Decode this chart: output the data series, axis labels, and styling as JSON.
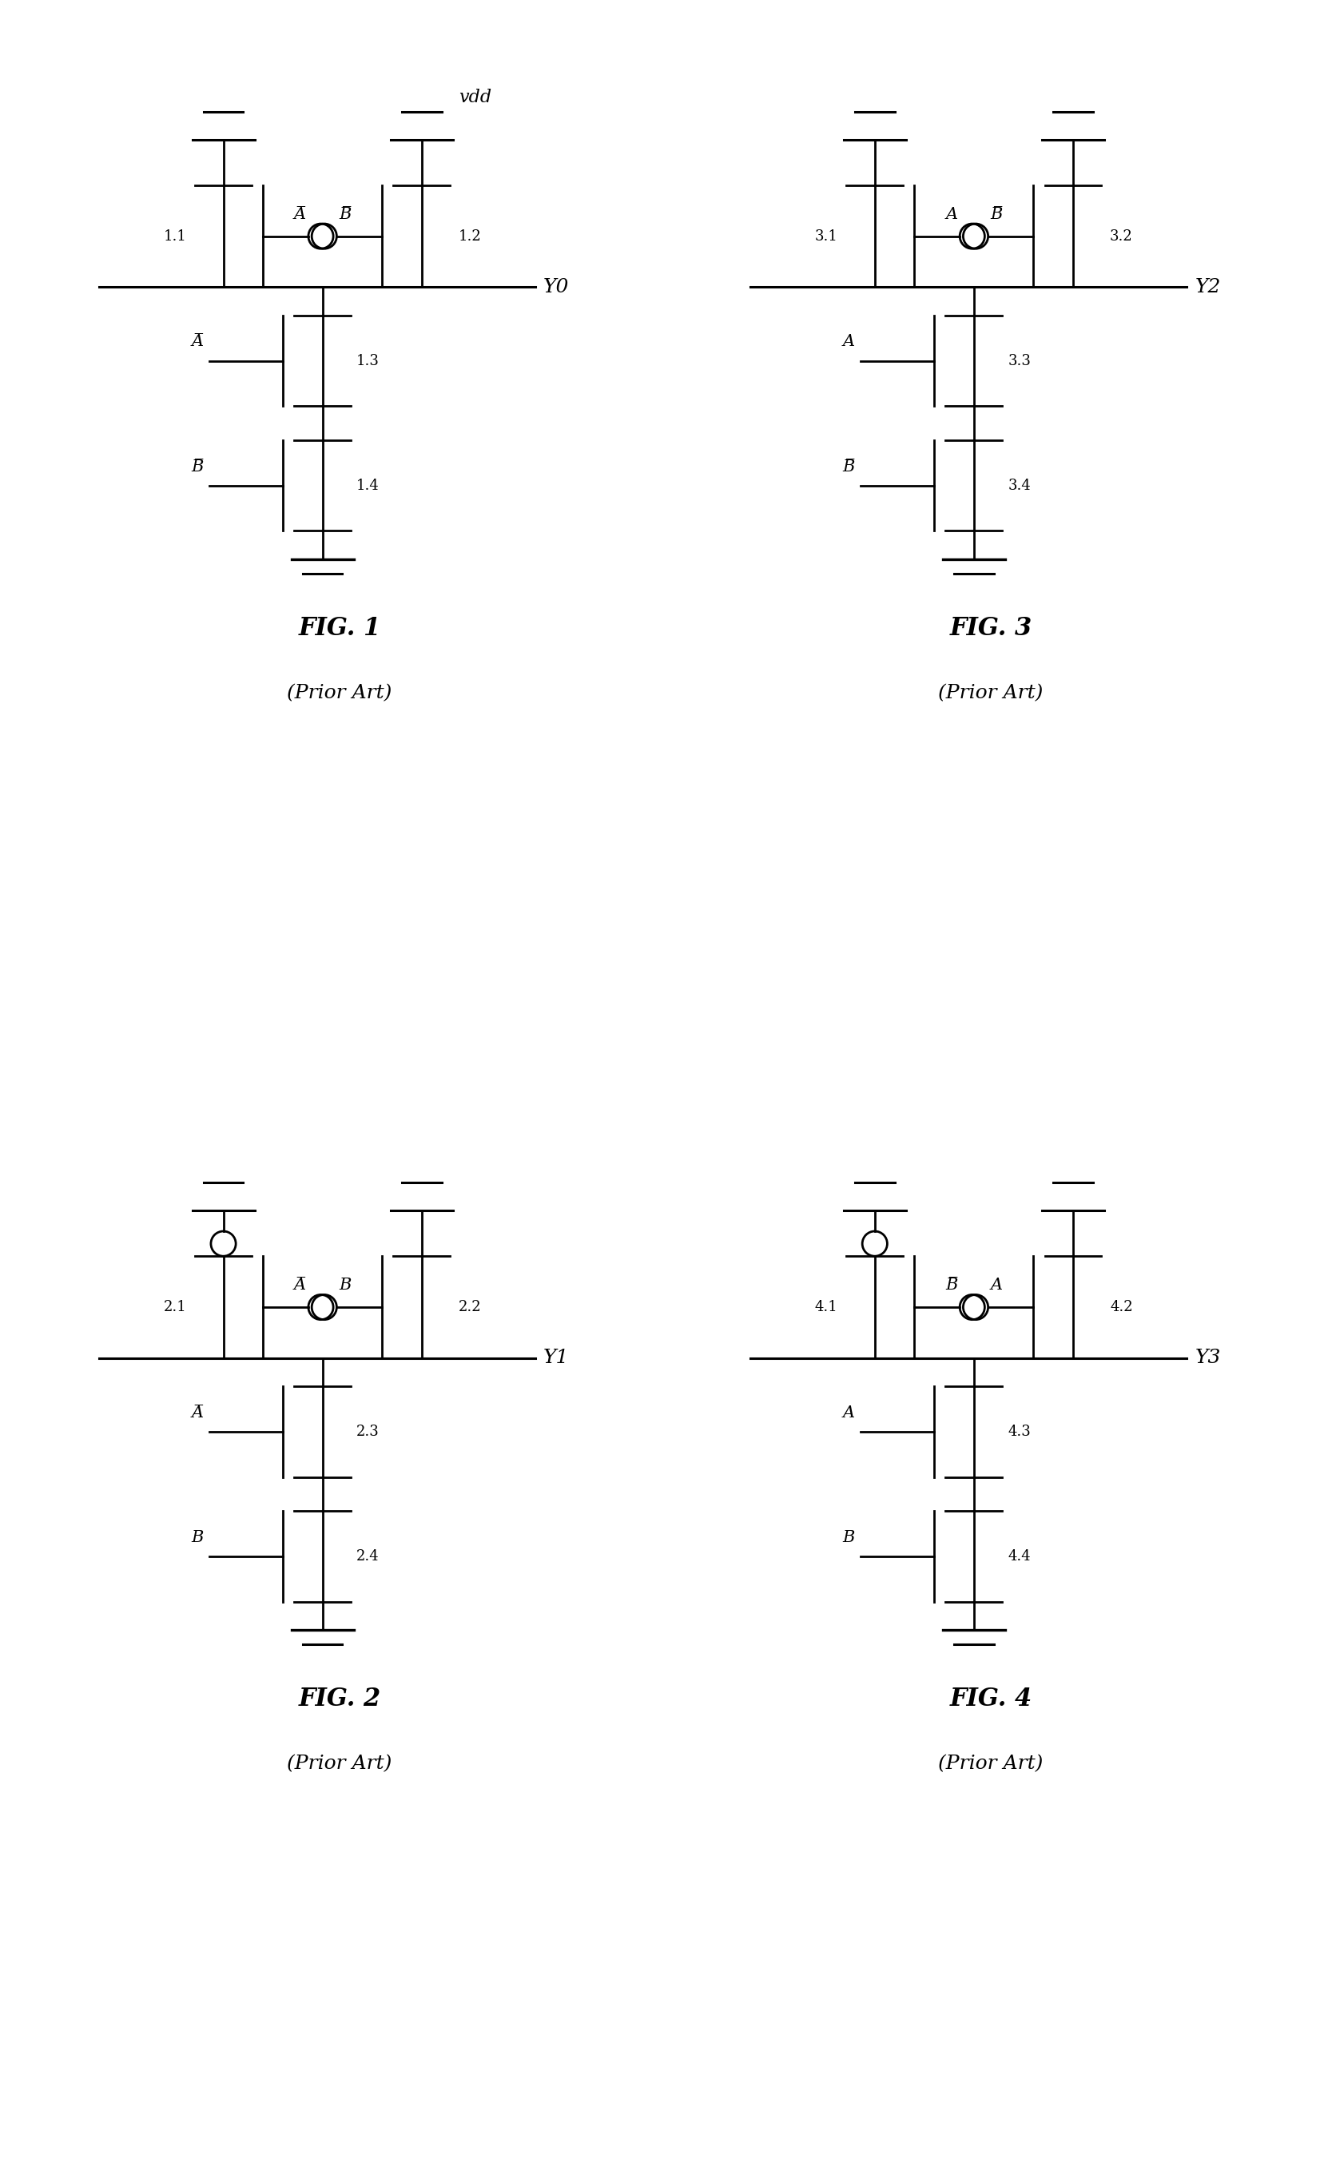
{
  "figures": [
    {
      "label": "FIG. 1",
      "sublabel": "(Prior Art)",
      "output_label": "Y0",
      "show_vdd": true,
      "transistors_top": [
        {
          "num": "1.1",
          "gate_label": "B̅",
          "gate_circle": true,
          "pmos_circle": false
        },
        {
          "num": "1.2",
          "gate_label": "A̅",
          "gate_circle": true,
          "pmos_circle": false
        }
      ],
      "transistors_bottom": [
        {
          "num": "1.3",
          "gate_label": "A̅",
          "gate_circle": false
        },
        {
          "num": "1.4",
          "gate_label": "B̅",
          "gate_circle": false
        }
      ],
      "col": 0,
      "row": 0
    },
    {
      "label": "FIG. 3",
      "sublabel": "(Prior Art)",
      "output_label": "Y2",
      "show_vdd": false,
      "transistors_top": [
        {
          "num": "3.1",
          "gate_label": "B̅",
          "gate_circle": true,
          "pmos_circle": false
        },
        {
          "num": "3.2",
          "gate_label": "A",
          "gate_circle": true,
          "pmos_circle": false
        }
      ],
      "transistors_bottom": [
        {
          "num": "3.3",
          "gate_label": "A",
          "gate_circle": false
        },
        {
          "num": "3.4",
          "gate_label": "B̅",
          "gate_circle": false
        }
      ],
      "col": 1,
      "row": 0
    },
    {
      "label": "FIG. 2",
      "sublabel": "(Prior Art)",
      "output_label": "Y1",
      "show_vdd": false,
      "transistors_top": [
        {
          "num": "2.1",
          "gate_label": "B",
          "gate_circle": true,
          "pmos_circle": true
        },
        {
          "num": "2.2",
          "gate_label": "A̅",
          "gate_circle": true,
          "pmos_circle": false
        }
      ],
      "transistors_bottom": [
        {
          "num": "2.3",
          "gate_label": "A̅",
          "gate_circle": false
        },
        {
          "num": "2.4",
          "gate_label": "B",
          "gate_circle": false
        }
      ],
      "col": 0,
      "row": 1
    },
    {
      "label": "FIG. 4",
      "sublabel": "(Prior Art)",
      "output_label": "Y3",
      "show_vdd": false,
      "transistors_top": [
        {
          "num": "4.1",
          "gate_label": "A",
          "gate_circle": true,
          "pmos_circle": true
        },
        {
          "num": "4.2",
          "gate_label": "B̅",
          "gate_circle": true,
          "pmos_circle": false
        }
      ],
      "transistors_bottom": [
        {
          "num": "4.3",
          "gate_label": "A",
          "gate_circle": false
        },
        {
          "num": "4.4",
          "gate_label": "B",
          "gate_circle": false
        }
      ],
      "col": 1,
      "row": 1
    }
  ],
  "lw": 2.0,
  "font_size_num": 13,
  "font_size_gate": 15,
  "font_size_fig": 22,
  "font_size_prior": 18,
  "font_size_vdd": 16,
  "font_size_ylabel": 18
}
